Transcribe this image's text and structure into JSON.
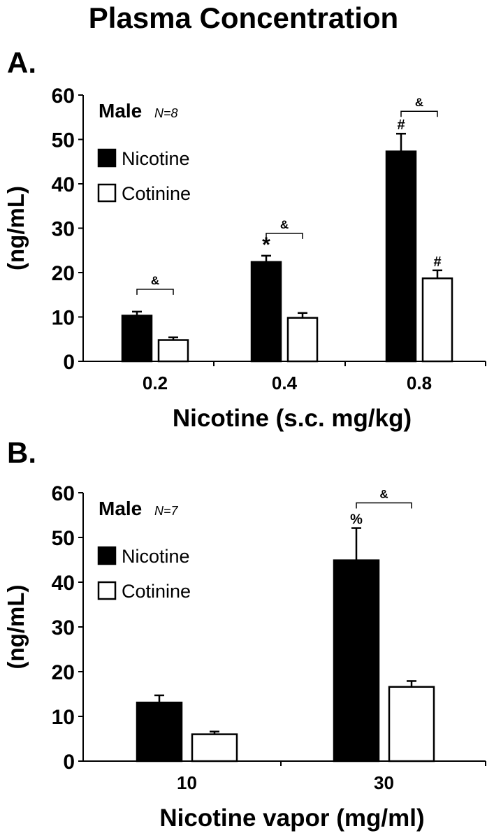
{
  "page_title": "Plasma Concentration",
  "chart_data": [
    {
      "panel_label": "A.",
      "type": "bar",
      "xlabel": "Nicotine (s.c. mg/kg)",
      "ylabel": "(ng/mL)",
      "ylim": [
        0,
        60
      ],
      "yticks": [
        "0",
        "10",
        "20",
        "30",
        "40",
        "50",
        "60"
      ],
      "categories": [
        "0.2",
        "0.4",
        "0.8"
      ],
      "group_text": "Male",
      "n_text": "N=8",
      "legend_position": "top-left",
      "series": [
        {
          "name": "Nicotine",
          "color": "#000000",
          "values": [
            10.3,
            22.4,
            47.3
          ],
          "errors": [
            0.9,
            1.4,
            4.0
          ],
          "markers": [
            "",
            "*",
            "#"
          ]
        },
        {
          "name": "Cotinine",
          "color": "#ffffff",
          "values": [
            4.8,
            9.8,
            18.7
          ],
          "errors": [
            0.6,
            1.1,
            1.8
          ],
          "markers": [
            "",
            "",
            "#"
          ]
        }
      ],
      "significance": [
        "&",
        "&",
        "&"
      ]
    },
    {
      "panel_label": "B.",
      "type": "bar",
      "xlabel": "Nicotine vapor (mg/ml)",
      "ylabel": "(ng/mL)",
      "ylim": [
        0,
        60
      ],
      "yticks": [
        "0",
        "10",
        "20",
        "30",
        "40",
        "50",
        "60"
      ],
      "categories": [
        "10",
        "30"
      ],
      "group_text": "Male",
      "n_text": "N=7",
      "legend_position": "top-left",
      "series": [
        {
          "name": "Nicotine",
          "color": "#000000",
          "values": [
            13.1,
            44.9
          ],
          "errors": [
            1.6,
            7.2
          ],
          "markers": [
            "",
            "%"
          ]
        },
        {
          "name": "Cotinine",
          "color": "#ffffff",
          "values": [
            6.0,
            16.6
          ],
          "errors": [
            0.6,
            1.3
          ],
          "markers": [
            "",
            ""
          ]
        }
      ],
      "significance": [
        "",
        "&"
      ]
    }
  ]
}
